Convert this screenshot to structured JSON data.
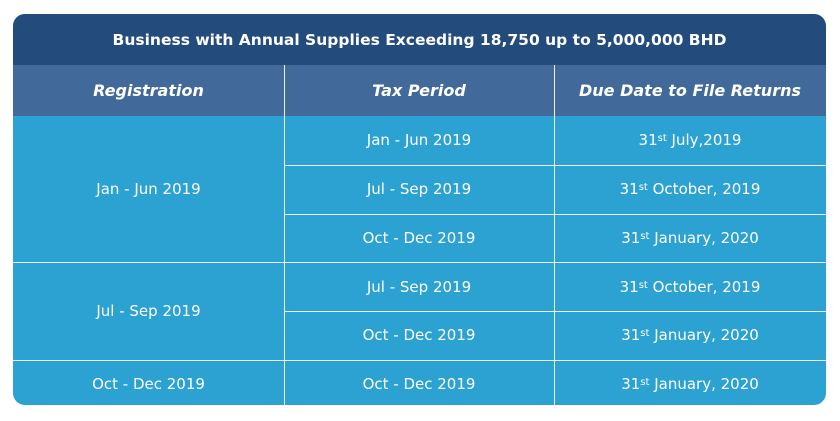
{
  "title": "Business with Annual Supplies Exceeding 18,750 up to 5,000,000 BHD",
  "headers": {
    "registration": "Registration",
    "tax_period": "Tax Period",
    "due_date": "Due Date to File Returns"
  },
  "groups": [
    {
      "registration": "Jan - Jun 2019",
      "rows": [
        {
          "tax_period": "Jan - Jun 2019",
          "due_day": "31",
          "due_suffix": "st",
          "due_rest": " July,2019"
        },
        {
          "tax_period": "Jul - Sep 2019",
          "due_day": "31",
          "due_suffix": "st",
          "due_rest": " October, 2019"
        },
        {
          "tax_period": "Oct - Dec 2019",
          "due_day": "31",
          "due_suffix": "st",
          "due_rest": " January, 2020"
        }
      ]
    },
    {
      "registration": "Jul - Sep 2019",
      "rows": [
        {
          "tax_period": "Jul - Sep 2019",
          "due_day": "31",
          "due_suffix": "st",
          "due_rest": " October, 2019"
        },
        {
          "tax_period": "Oct - Dec 2019",
          "due_day": "31",
          "due_suffix": "st",
          "due_rest": " January, 2020"
        }
      ]
    },
    {
      "registration": "Oct - Dec 2019",
      "rows": [
        {
          "tax_period": "Oct - Dec 2019",
          "due_day": "31",
          "due_suffix": "st",
          "due_rest": " January, 2020"
        }
      ]
    }
  ],
  "colors": {
    "title_bg": "#234c7c",
    "header_bg": "#41699a",
    "body_bg": "#2ba2d2",
    "text": "#ffffff"
  }
}
